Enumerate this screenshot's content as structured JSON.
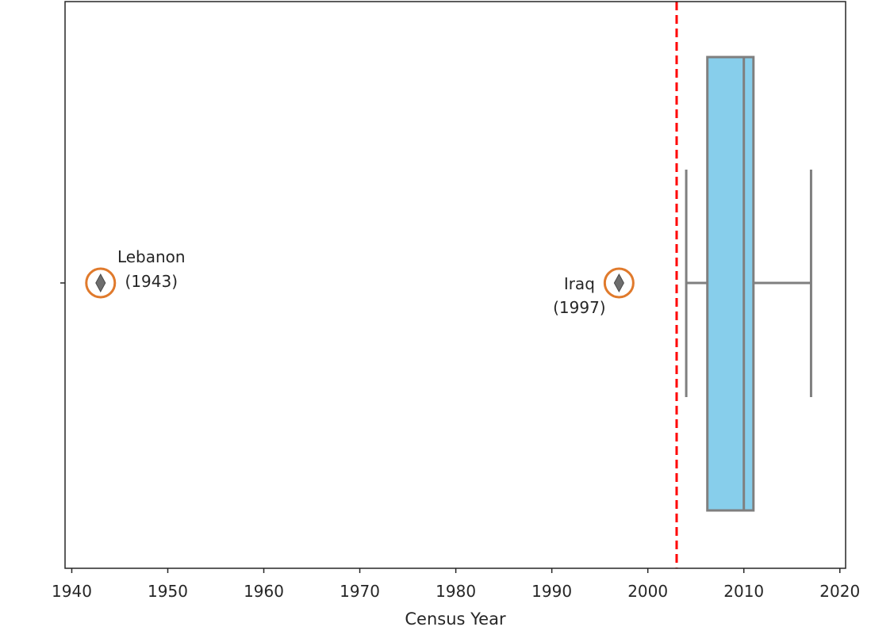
{
  "chart_data": {
    "type": "box",
    "title": "",
    "xlabel": "Census Year",
    "ylabel": "",
    "xlim": [
      1939.3,
      2020.6
    ],
    "xticks": [
      1940,
      1950,
      1960,
      1970,
      1980,
      1990,
      2000,
      2010,
      2020
    ],
    "grid": false,
    "box": {
      "whisker_low": 2004,
      "q1": 2006.2,
      "median": 2010,
      "q3": 2011,
      "whisker_high": 2017,
      "color": "#87CEEB",
      "line_color": "#7f7f7f"
    },
    "reference_line": {
      "x": 2003,
      "color": "#ff0000",
      "style": "dashed"
    },
    "outliers": [
      {
        "name": "Lebanon",
        "label": "(1943)",
        "year": 1943
      },
      {
        "name": "Iraq",
        "label": "(1997)",
        "year": 1997
      }
    ],
    "highlight_color": "#e07a2c"
  }
}
